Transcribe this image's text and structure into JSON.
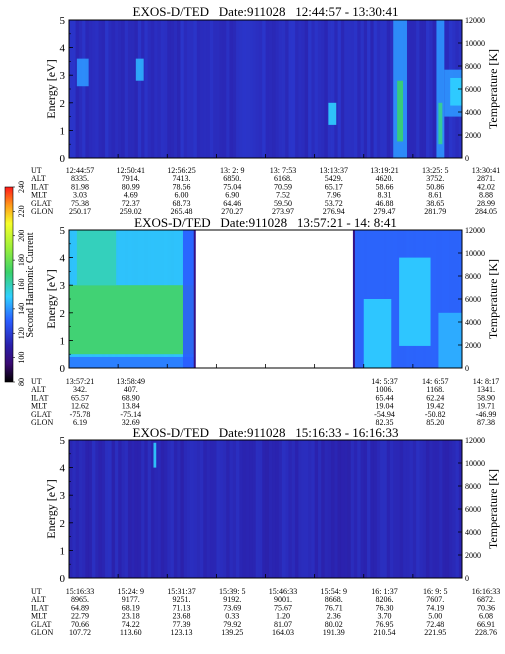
{
  "colors": {
    "background_low": "#2a1faa",
    "mid_blue": "#3c5cf0",
    "cyan": "#33d6ff",
    "green": "#3ad16a",
    "hot": "#f6ff2a",
    "frame": "#000000"
  },
  "colorbar": {
    "label": "Second Harmonic Current",
    "ticks": [
      "80",
      "100",
      "120",
      "140",
      "160",
      "180",
      "200",
      "220",
      "240"
    ],
    "stops": [
      {
        "value": 80,
        "color": "#000000"
      },
      {
        "value": 95,
        "color": "#3a0a72"
      },
      {
        "value": 110,
        "color": "#2a1faa"
      },
      {
        "value": 130,
        "color": "#2a5cff"
      },
      {
        "value": 150,
        "color": "#2fd0ff"
      },
      {
        "value": 170,
        "color": "#3ad16a"
      },
      {
        "value": 190,
        "color": "#9cf03a"
      },
      {
        "value": 210,
        "color": "#f6ff2a"
      },
      {
        "value": 225,
        "color": "#ff9a1a"
      },
      {
        "value": 240,
        "color": "#ff1a1a"
      }
    ]
  },
  "chart_data": [
    {
      "type": "heatmap",
      "title": "EXOS-D/TED   Date:911028   12:44:57 - 13:30:41",
      "ylabel": "Energy [eV]",
      "y2label": "Temperature [K]",
      "ylim": [
        0,
        5
      ],
      "y2lim": [
        0,
        12000
      ],
      "yticks": [
        "0",
        "1",
        "2",
        "3",
        "4",
        "5"
      ],
      "y2ticks": [
        "0",
        "2000",
        "4000",
        "6000",
        "8000",
        "10000",
        "12000"
      ],
      "background_level": 115,
      "gaps": [],
      "features": [
        {
          "x0": 0.02,
          "x1": 0.05,
          "e0": 2.6,
          "e1": 3.6,
          "level": 140
        },
        {
          "x0": 0.17,
          "x1": 0.19,
          "e0": 2.8,
          "e1": 3.6,
          "level": 145
        },
        {
          "x0": 0.66,
          "x1": 0.68,
          "e0": 1.2,
          "e1": 2.0,
          "level": 150
        },
        {
          "x0": 0.825,
          "x1": 0.86,
          "e0": 0.0,
          "e1": 5.0,
          "level": 140
        },
        {
          "x0": 0.835,
          "x1": 0.85,
          "e0": 0.6,
          "e1": 2.8,
          "level": 170
        },
        {
          "x0": 0.935,
          "x1": 0.955,
          "e0": 0.0,
          "e1": 5.0,
          "level": 140
        },
        {
          "x0": 0.94,
          "x1": 0.95,
          "e0": 0.5,
          "e1": 2.0,
          "level": 165
        },
        {
          "x0": 0.955,
          "x1": 1.0,
          "e0": 1.5,
          "e1": 3.2,
          "level": 140
        },
        {
          "x0": 0.97,
          "x1": 1.0,
          "e0": 1.9,
          "e1": 2.9,
          "level": 150
        }
      ],
      "table": {
        "rows": [
          {
            "label": "UT",
            "values": [
              "12:44:57",
              "12:50:41",
              "12:56:25",
              "13: 2: 9",
              "13: 7:53",
              "13:13:37",
              "13:19:21",
              "13:25: 5",
              "13:30:41"
            ]
          },
          {
            "label": "ALT",
            "values": [
              "8335.",
              "7914.",
              "7413.",
              "6850.",
              "6168.",
              "5429.",
              "4620.",
              "3752.",
              "2871."
            ]
          },
          {
            "label": "ILAT",
            "values": [
              "81.98",
              "80.99",
              "78.56",
              "75.04",
              "70.59",
              "65.17",
              "58.66",
              "50.86",
              "42.02"
            ]
          },
          {
            "label": "MLT",
            "values": [
              "3.03",
              "4.69",
              "6.00",
              "6.90",
              "7.52",
              "7.96",
              "8.31",
              "8.61",
              "8.88"
            ]
          },
          {
            "label": "GLAT",
            "values": [
              "75.38",
              "72.37",
              "68.73",
              "64.46",
              "59.50",
              "53.72",
              "46.88",
              "38.65",
              "28.99"
            ]
          },
          {
            "label": "GLON",
            "values": [
              "250.17",
              "259.02",
              "265.48",
              "270.27",
              "273.97",
              "276.94",
              "279.47",
              "281.79",
              "284.05"
            ]
          }
        ]
      }
    },
    {
      "type": "heatmap",
      "title": "EXOS-D/TED   Date:911028   13:57:21 - 14: 8:41",
      "ylabel": "Energy [eV]",
      "y2label": "Temperature [K]",
      "ylim": [
        0,
        5
      ],
      "y2lim": [
        0,
        12000
      ],
      "yticks": [
        "0",
        "1",
        "2",
        "3",
        "4",
        "5"
      ],
      "y2ticks": [
        "0",
        "2000",
        "4000",
        "6000",
        "8000",
        "10000",
        "12000"
      ],
      "background_level": 120,
      "gaps": [
        {
          "x0": 0.32,
          "x1": 0.725
        }
      ],
      "features": [
        {
          "x0": 0.0,
          "x1": 0.32,
          "e0": 0.0,
          "e1": 5.0,
          "level": 150
        },
        {
          "x0": 0.0,
          "x1": 0.32,
          "e0": 0.5,
          "e1": 3.0,
          "level": 172
        },
        {
          "x0": 0.02,
          "x1": 0.12,
          "e0": 3.0,
          "e1": 5.0,
          "level": 160
        },
        {
          "x0": 0.0,
          "x1": 0.32,
          "e0": 0.0,
          "e1": 0.4,
          "level": 135
        },
        {
          "x0": 0.29,
          "x1": 0.32,
          "e0": 0.0,
          "e1": 5.0,
          "level": 130
        },
        {
          "x0": 0.725,
          "x1": 1.0,
          "e0": 0.0,
          "e1": 5.0,
          "level": 132
        },
        {
          "x0": 0.75,
          "x1": 0.82,
          "e0": 0.0,
          "e1": 2.5,
          "level": 150
        },
        {
          "x0": 0.84,
          "x1": 0.92,
          "e0": 0.8,
          "e1": 4.0,
          "level": 150
        },
        {
          "x0": 0.94,
          "x1": 1.0,
          "e0": 0.0,
          "e1": 2.0,
          "level": 145
        }
      ],
      "table": {
        "rows": [
          {
            "label": "UT",
            "values": [
              "13:57:21",
              "13:58:49",
              "",
              "",
              "",
              "",
              "14: 5:37",
              "14: 6:57",
              "14: 8:17"
            ]
          },
          {
            "label": "ALT",
            "values": [
              "342.",
              "407.",
              "",
              "",
              "",
              "",
              "1006.",
              "1168.",
              "1341."
            ]
          },
          {
            "label": "ILAT",
            "values": [
              "65.57",
              "68.90",
              "",
              "",
              "",
              "",
              "65.44",
              "62.24",
              "58.90"
            ]
          },
          {
            "label": "MLT",
            "values": [
              "12.62",
              "13.84",
              "",
              "",
              "",
              "",
              "19.04",
              "19.42",
              "19.71"
            ]
          },
          {
            "label": "GLAT",
            "values": [
              "-75.78",
              "-75.14",
              "",
              "",
              "",
              "",
              "-54.94",
              "-50.82",
              "-46.99"
            ]
          },
          {
            "label": "GLON",
            "values": [
              "6.19",
              "32.69",
              "",
              "",
              "",
              "",
              "82.35",
              "85.20",
              "87.38"
            ]
          }
        ]
      }
    },
    {
      "type": "heatmap",
      "title": "EXOS-D/TED   Date:911028   15:16:33 - 16:16:33",
      "ylabel": "Energy [eV]",
      "y2label": "Temperature [K]",
      "ylim": [
        0,
        5
      ],
      "y2lim": [
        0,
        12000
      ],
      "yticks": [
        "0",
        "1",
        "2",
        "3",
        "4",
        "5"
      ],
      "y2ticks": [
        "0",
        "2000",
        "4000",
        "6000",
        "8000",
        "10000",
        "12000"
      ],
      "background_level": 113,
      "gaps": [],
      "features": [
        {
          "x0": 0.215,
          "x1": 0.222,
          "e0": 4.0,
          "e1": 4.9,
          "level": 150
        }
      ],
      "table": {
        "rows": [
          {
            "label": "UT",
            "values": [
              "15:16:33",
              "15:24: 9",
              "15:31:37",
              "15:39: 5",
              "15:46:33",
              "15:54: 9",
              "16: 1:37",
              "16: 9: 5",
              "16:16:33"
            ]
          },
          {
            "label": "ALT",
            "values": [
              "8965.",
              "9177.",
              "9251.",
              "9192.",
              "9001.",
              "8668.",
              "8206.",
              "7607.",
              "6872."
            ]
          },
          {
            "label": "ILAT",
            "values": [
              "64.89",
              "68.19",
              "71.13",
              "73.69",
              "75.67",
              "76.71",
              "76.30",
              "74.19",
              "70.36"
            ]
          },
          {
            "label": "MLT",
            "values": [
              "22.79",
              "23.18",
              "23.68",
              "0.33",
              "1.20",
              "2.36",
              "3.70",
              "5.00",
              "6.08"
            ]
          },
          {
            "label": "GLAT",
            "values": [
              "70.66",
              "74.22",
              "77.39",
              "79.92",
              "81.07",
              "80.02",
              "76.95",
              "72.48",
              "66.91"
            ]
          },
          {
            "label": "GLON",
            "values": [
              "107.72",
              "113.60",
              "123.13",
              "139.25",
              "164.03",
              "191.39",
              "210.54",
              "221.95",
              "228.76"
            ]
          }
        ]
      }
    }
  ]
}
